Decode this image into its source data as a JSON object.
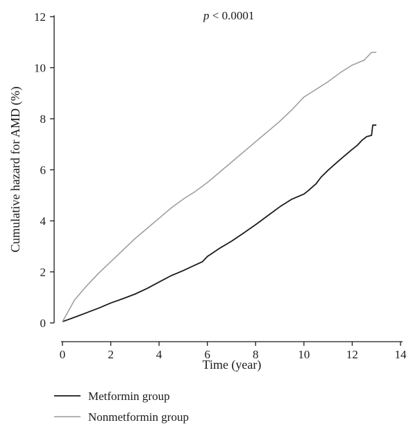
{
  "chart_data": {
    "type": "line",
    "title": "",
    "xlabel": "Time (year)",
    "ylabel": "Cumulative hazard for AMD (%)",
    "xlim": [
      0,
      14
    ],
    "ylim": [
      0,
      12
    ],
    "xticks": [
      0,
      2,
      4,
      6,
      8,
      10,
      12,
      14
    ],
    "yticks": [
      0,
      2,
      4,
      6,
      8,
      10,
      12
    ],
    "grid": false,
    "legend_position": "bottom-left",
    "annotation": {
      "italic": "p",
      "rest": " < 0.0001"
    },
    "series": [
      {
        "name": "Metformin group",
        "color": "#1a1a1a",
        "x": [
          0,
          0.5,
          1,
          1.5,
          2,
          2.5,
          3,
          3.5,
          4,
          4.5,
          5,
          5.5,
          5.8,
          6,
          6.5,
          7,
          7.5,
          8,
          8.5,
          9,
          9.5,
          10,
          10.2,
          10.5,
          10.7,
          11,
          11.5,
          12,
          12.2,
          12.4,
          12.6,
          12.8,
          12.85,
          13
        ],
        "y": [
          0.05,
          0.22,
          0.4,
          0.58,
          0.78,
          0.95,
          1.13,
          1.35,
          1.6,
          1.85,
          2.05,
          2.27,
          2.4,
          2.6,
          2.92,
          3.2,
          3.52,
          3.85,
          4.2,
          4.55,
          4.85,
          5.05,
          5.2,
          5.45,
          5.7,
          5.98,
          6.4,
          6.8,
          6.95,
          7.15,
          7.3,
          7.35,
          7.75,
          7.75
        ]
      },
      {
        "name": "Nonmetformin group",
        "color": "#9a9a9a",
        "x": [
          0,
          0.5,
          1,
          1.5,
          2,
          2.5,
          3,
          3.5,
          4,
          4.5,
          5,
          5.5,
          6,
          6.5,
          7,
          7.5,
          8,
          8.5,
          9,
          9.5,
          9.9,
          10,
          10.5,
          11,
          11.5,
          12,
          12.5,
          12.8,
          13
        ],
        "y": [
          0.05,
          0.9,
          1.45,
          1.95,
          2.4,
          2.85,
          3.3,
          3.7,
          4.1,
          4.5,
          4.85,
          5.15,
          5.5,
          5.9,
          6.3,
          6.7,
          7.1,
          7.5,
          7.9,
          8.35,
          8.75,
          8.85,
          9.15,
          9.45,
          9.8,
          10.1,
          10.3,
          10.6,
          10.6
        ]
      }
    ]
  }
}
